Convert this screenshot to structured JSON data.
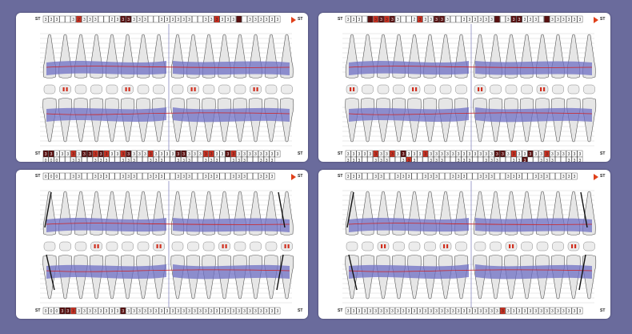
{
  "colors": {
    "background": "#6a6b9c",
    "panel": "#ffffff",
    "gum_band": "#6d6fc4",
    "margin_line": "#d02020",
    "tooth_fill": "#e6e6e6",
    "tooth_stroke": "#555555",
    "cell_dark": "#5a1010",
    "cell_red": "#d03020",
    "cell_light": "#f0b0a0",
    "arrow": "#e0401a"
  },
  "icons": [
    "play-arrow-icon"
  ],
  "panels": [
    {
      "st_label": "ST",
      "top_row": [
        "3",
        "3",
        "3",
        "",
        "",
        "3",
        "2",
        "3",
        "3",
        "3",
        "",
        "",
        "2",
        "3",
        "3",
        "3",
        "3",
        "3",
        "3",
        "",
        "",
        "3",
        "3",
        "3",
        "3",
        "3",
        "3",
        "",
        "",
        "3",
        "3",
        "3",
        "3",
        "3",
        "3",
        "",
        "",
        "3",
        "3",
        "3",
        "3",
        "3",
        "3"
      ],
      "top_marks": [
        0,
        0,
        0,
        0,
        0,
        0,
        2,
        0,
        0,
        0,
        0,
        0,
        0,
        0,
        1,
        1,
        0,
        0,
        0,
        0,
        0,
        0,
        0,
        0,
        0,
        0,
        0,
        0,
        0,
        0,
        0,
        2,
        0,
        0,
        0,
        1,
        0,
        0,
        0,
        0,
        0,
        0,
        0
      ],
      "bottom_row": [
        "3",
        "3",
        "3",
        "3",
        "3",
        "3",
        "3",
        "3",
        "3",
        "3",
        "3",
        "3",
        "3",
        "3",
        "3",
        "3",
        "3",
        "3",
        "3",
        "3",
        "3",
        "3",
        "3",
        "3",
        "3",
        "3",
        "3",
        "3",
        "3",
        "3",
        "3",
        "3",
        "3",
        "3",
        "3",
        "3",
        "3",
        "3",
        "3",
        "3",
        "3",
        "3",
        "3"
      ],
      "bottom_marks": [
        1,
        1,
        0,
        0,
        0,
        2,
        0,
        1,
        1,
        2,
        1,
        2,
        0,
        0,
        2,
        1,
        0,
        0,
        0,
        2,
        0,
        0,
        0,
        0,
        1,
        1,
        0,
        0,
        0,
        2,
        2,
        0,
        0,
        1,
        2,
        0,
        0,
        0,
        0,
        0,
        0,
        0,
        0
      ],
      "lower_row": [
        "0",
        "0",
        "0",
        "",
        "",
        "3",
        "3",
        "",
        "",
        "3",
        "3",
        "3",
        "",
        "",
        "3",
        "3",
        "3",
        "",
        "",
        "3",
        "3",
        "3",
        "",
        "",
        "3",
        "3",
        "3",
        "",
        "",
        "3",
        "3",
        "3",
        "",
        "",
        "3",
        "3",
        "3",
        "",
        "",
        "3",
        "3",
        "3"
      ],
      "lower_marks": [
        0,
        0,
        0,
        0,
        0,
        0,
        0,
        0,
        0,
        0,
        0,
        0,
        0,
        0,
        0,
        0,
        0,
        0,
        0,
        0,
        0,
        0,
        0,
        0,
        0,
        0,
        0,
        0,
        0,
        0,
        0,
        0,
        0,
        0,
        0,
        0,
        0,
        0,
        0,
        0,
        0
      ],
      "has_lines": false
    },
    {
      "st_label": "ST",
      "top_row": [
        "3",
        "3",
        "3",
        "",
        "",
        "3",
        "3",
        "3",
        "3",
        "3",
        "",
        "",
        "2",
        "3",
        "3",
        "3",
        "3",
        "3",
        "3",
        "",
        "",
        "3",
        "3",
        "3",
        "3",
        "3",
        "3",
        "",
        "",
        "3",
        "3",
        "3",
        "3",
        "3",
        "3",
        "",
        "",
        "3",
        "3",
        "3",
        "3",
        "3",
        "3"
      ],
      "top_marks": [
        0,
        0,
        0,
        0,
        1,
        2,
        1,
        2,
        1,
        0,
        0,
        0,
        0,
        2,
        0,
        0,
        1,
        1,
        0,
        0,
        0,
        0,
        0,
        0,
        0,
        0,
        0,
        1,
        0,
        0,
        1,
        1,
        0,
        0,
        0,
        0,
        1,
        0,
        0,
        0,
        0,
        0,
        0
      ],
      "bottom_row": [
        "3",
        "3",
        "3",
        "3",
        "3",
        "3",
        "3",
        "3",
        "3",
        "3",
        "3",
        "3",
        "3",
        "3",
        "3",
        "3",
        "3",
        "3",
        "3",
        "3",
        "3",
        "3",
        "3",
        "3",
        "3",
        "3",
        "3",
        "3",
        "3",
        "3",
        "3",
        "3",
        "3",
        "3",
        "3",
        "3",
        "3",
        "3",
        "3",
        "3",
        "3",
        "3",
        "3"
      ],
      "bottom_marks": [
        0,
        0,
        0,
        0,
        0,
        2,
        0,
        0,
        2,
        0,
        1,
        0,
        0,
        0,
        2,
        0,
        0,
        0,
        0,
        0,
        0,
        0,
        0,
        0,
        0,
        0,
        0,
        1,
        1,
        0,
        2,
        0,
        0,
        1,
        0,
        0,
        2,
        0,
        0,
        0,
        0,
        0,
        0
      ],
      "lower_row": [
        "3",
        "3",
        "3",
        "",
        "",
        "3",
        "3",
        "3",
        "",
        "",
        "3",
        "3",
        "3",
        "",
        "",
        "3",
        "3",
        "3",
        "",
        "",
        "3",
        "3",
        "3",
        "",
        "",
        "3",
        "3",
        "3",
        "",
        "",
        "3",
        "3",
        "3",
        "",
        "",
        "3",
        "3",
        "3",
        "",
        "",
        "3",
        "3",
        "3"
      ],
      "lower_marks": [
        0,
        0,
        0,
        0,
        0,
        0,
        0,
        0,
        0,
        0,
        0,
        2,
        0,
        0,
        0,
        0,
        0,
        0,
        0,
        0,
        0,
        0,
        0,
        0,
        0,
        0,
        0,
        0,
        0,
        0,
        0,
        0,
        1,
        0,
        0,
        0,
        0,
        0,
        0,
        0,
        0,
        0,
        0
      ],
      "has_lines": false
    },
    {
      "st_label": "ST",
      "top_row": [
        "0",
        "0",
        "0",
        "",
        "",
        "3",
        "3",
        "",
        "",
        "3",
        "3",
        "3",
        "",
        "",
        "3",
        "3",
        "3",
        "",
        "",
        "3",
        "3",
        "3",
        "",
        "",
        "3",
        "3",
        "3",
        "",
        "",
        "3",
        "3",
        "3",
        "",
        "",
        "3",
        "3",
        "3",
        "",
        "",
        "3",
        "3",
        "3"
      ],
      "top_marks": [
        0,
        0,
        0,
        0,
        0,
        0,
        0,
        0,
        0,
        0,
        0,
        0,
        0,
        0,
        0,
        0,
        0,
        0,
        0,
        0,
        0,
        0,
        0,
        0,
        0,
        0,
        0,
        0,
        0,
        0,
        0,
        0,
        0,
        0,
        0,
        0,
        0,
        0,
        0,
        0,
        0
      ],
      "bottom_row": [
        "0",
        "0",
        "0",
        "3",
        "3",
        "3",
        "3",
        "3",
        "3",
        "3",
        "3",
        "3",
        "3",
        "3",
        "3",
        "3",
        "3",
        "3",
        "3",
        "3",
        "3",
        "3",
        "3",
        "3",
        "3",
        "3",
        "3",
        "3",
        "3",
        "3",
        "3",
        "3",
        "3",
        "3",
        "3",
        "3",
        "3",
        "3",
        "3",
        "3",
        "3",
        "3",
        "3"
      ],
      "bottom_marks": [
        0,
        0,
        0,
        1,
        1,
        2,
        0,
        0,
        0,
        0,
        0,
        0,
        0,
        0,
        1,
        0,
        0,
        0,
        0,
        0,
        0,
        0,
        0,
        0,
        0,
        0,
        0,
        0,
        0,
        0,
        0,
        0,
        0,
        0,
        0,
        0,
        0,
        0,
        0,
        0,
        0,
        0,
        0
      ],
      "lower_row": [],
      "lower_marks": [],
      "has_lines": true
    },
    {
      "st_label": "ST",
      "top_row": [
        "3",
        "3",
        "3",
        "",
        "",
        "3",
        "3",
        "",
        "",
        "3",
        "3",
        "3",
        "",
        "",
        "3",
        "3",
        "3",
        "",
        "",
        "3",
        "3",
        "3",
        "",
        "",
        "3",
        "3",
        "3",
        "",
        "",
        "3",
        "3",
        "3",
        "",
        "",
        "3",
        "3",
        "3",
        "",
        "",
        "3",
        "3",
        "3"
      ],
      "top_marks": [
        0,
        0,
        0,
        0,
        0,
        0,
        0,
        0,
        0,
        0,
        0,
        0,
        0,
        0,
        0,
        0,
        0,
        0,
        0,
        0,
        0,
        0,
        0,
        0,
        0,
        0,
        0,
        0,
        0,
        0,
        0,
        0,
        0,
        0,
        0,
        0,
        0,
        0,
        0,
        0,
        0
      ],
      "bottom_row": [
        "3",
        "3",
        "3",
        "3",
        "3",
        "3",
        "3",
        "3",
        "3",
        "3",
        "3",
        "3",
        "3",
        "3",
        "3",
        "3",
        "3",
        "3",
        "3",
        "3",
        "3",
        "3",
        "3",
        "3",
        "3",
        "3",
        "3",
        "3",
        "3",
        "3",
        "3",
        "3",
        "3",
        "3",
        "3",
        "3",
        "3",
        "3",
        "3",
        "3",
        "3",
        "3",
        "3"
      ],
      "bottom_marks": [
        0,
        0,
        0,
        0,
        0,
        0,
        0,
        0,
        0,
        0,
        0,
        0,
        0,
        0,
        0,
        0,
        0,
        0,
        0,
        0,
        0,
        0,
        0,
        0,
        0,
        0,
        0,
        0,
        2,
        0,
        0,
        0,
        0,
        0,
        0,
        0,
        0,
        0,
        0,
        0,
        0,
        0,
        0
      ],
      "lower_row": [],
      "lower_marks": [],
      "has_lines": true
    }
  ]
}
